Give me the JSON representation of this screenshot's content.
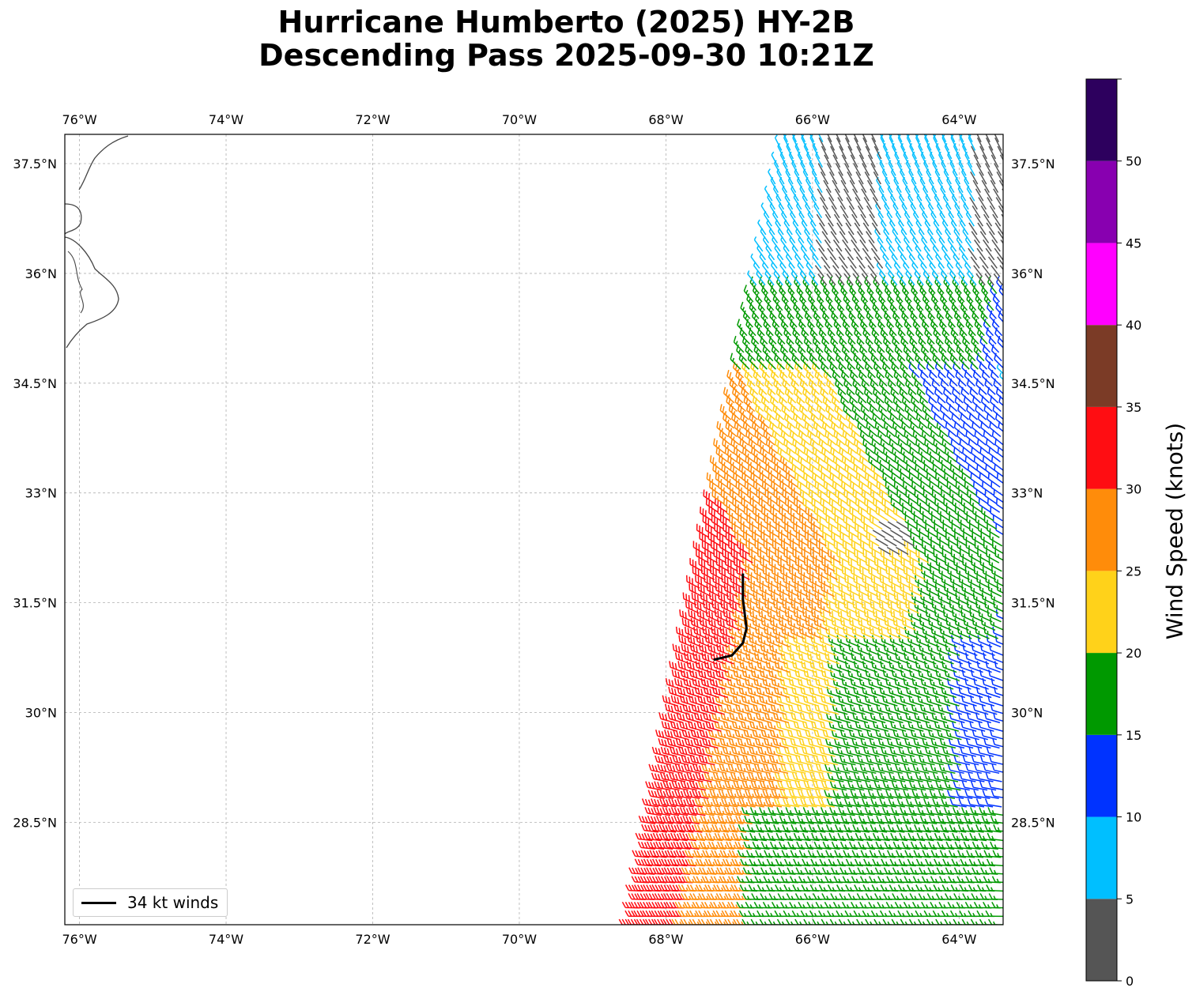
{
  "title": {
    "line1": "Hurricane Humberto (2025) HY-2B",
    "line2": "Descending Pass 2025-09-30 10:21Z"
  },
  "map": {
    "lon_ticks": [
      "76°W",
      "74°W",
      "72°W",
      "70°W",
      "68°W",
      "66°W",
      "64°W"
    ],
    "lon_values": [
      -76,
      -74,
      -72,
      -70,
      -68,
      -66,
      -64
    ],
    "lat_ticks": [
      "37.5°N",
      "36°N",
      "34.5°N",
      "33°N",
      "31.5°N",
      "30°N",
      "28.5°N"
    ],
    "lat_values": [
      37.5,
      36,
      34.5,
      33,
      31.5,
      30,
      28.5
    ],
    "lon_range": [
      -76.2,
      -63.4
    ],
    "lat_range": [
      27.1,
      37.9
    ]
  },
  "legend": {
    "label": "34 kt winds",
    "color": "#000000"
  },
  "colorbar": {
    "label": "Wind Speed (knots)",
    "tick_labels": [
      "0",
      "5",
      "10",
      "15",
      "20",
      "25",
      "30",
      "35",
      "40",
      "45",
      "50"
    ],
    "bins": [
      {
        "min": 0,
        "max": 5,
        "color": "#555555"
      },
      {
        "min": 5,
        "max": 10,
        "color": "#00bfff"
      },
      {
        "min": 10,
        "max": 15,
        "color": "#0033ff"
      },
      {
        "min": 15,
        "max": 20,
        "color": "#009900"
      },
      {
        "min": 20,
        "max": 25,
        "color": "#ffd21a"
      },
      {
        "min": 25,
        "max": 30,
        "color": "#ff8c0a"
      },
      {
        "min": 30,
        "max": 35,
        "color": "#ff0d12"
      },
      {
        "min": 35,
        "max": 40,
        "color": "#7b3b26"
      },
      {
        "min": 40,
        "max": 45,
        "color": "#ff00ff"
      },
      {
        "min": 45,
        "max": 50,
        "color": "#8800b0"
      },
      {
        "min": 50,
        "max": 55,
        "color": "#2d005e"
      }
    ]
  },
  "wind_field": {
    "swath_lon_west_edge": [
      -68.4,
      -66.4
    ],
    "swath_lat_span": [
      27.1,
      37.8
    ],
    "center_lon": -64.8,
    "center_lat": 32.3
  },
  "wind_radius_34kt": [
    [
      -66.95,
      31.9
    ],
    [
      -66.95,
      31.55
    ],
    [
      -66.9,
      31.15
    ],
    [
      -66.95,
      30.95
    ],
    [
      -67.1,
      30.78
    ],
    [
      -67.35,
      30.72
    ]
  ]
}
